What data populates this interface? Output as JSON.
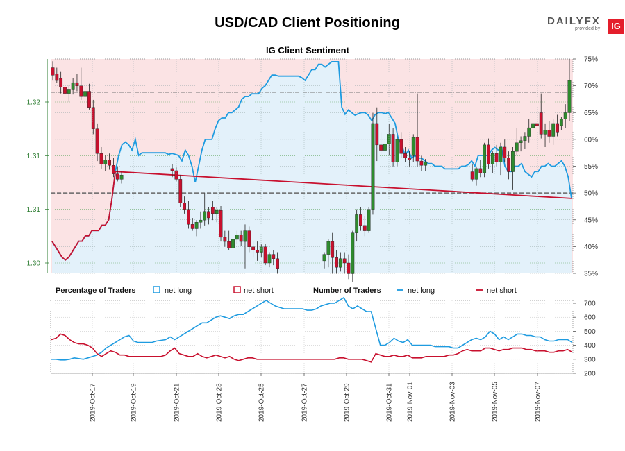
{
  "header": {
    "title": "USD/CAD Client Positioning",
    "brand": "DAILYFX",
    "brand_sub": "provided by",
    "brand_badge": "IG"
  },
  "colors": {
    "net_long": "#1e9be0",
    "net_short": "#c8102e",
    "long_area": "#e3f1fa",
    "short_area": "#fbe3e4",
    "candle_up": "#2e8b2e",
    "candle_down": "#c8102e",
    "price_axis": "#2e7d32"
  },
  "chart_data": [
    {
      "type": "line",
      "title": "IG Client Sentiment",
      "description_kind": "candlestick price with net long percentage area",
      "x_ticks": [
        "2019-Oct-17",
        "2019-Oct-19",
        "2019-Oct-21",
        "2019-Oct-23",
        "2019-Oct-25",
        "2019-Oct-27",
        "2019-Oct-29",
        "2019-Oct-31",
        "2019-Nov-01",
        "2019-Nov-03",
        "2019-Nov-05",
        "2019-Nov-07"
      ],
      "price_axis": {
        "ticks": [
          "1.30",
          "1.31",
          "1.31",
          "1.32"
        ],
        "values": [
          1.3,
          1.305,
          1.31,
          1.315
        ],
        "range": [
          1.299,
          1.3195
        ]
      },
      "percent_axis": {
        "ticks": [
          "35%",
          "40%",
          "45%",
          "50%",
          "55%",
          "60%",
          "65%",
          "70%",
          "75%"
        ],
        "range": [
          35,
          75
        ]
      },
      "reference_lines": {
        "net_long_50pct": 50,
        "price_last_high": 1.3159
      },
      "net_long_pct": [
        41,
        40,
        39,
        38,
        37.5,
        38,
        39,
        40,
        41,
        41,
        42,
        42,
        43,
        43,
        43,
        44,
        44,
        45,
        49,
        54,
        57,
        59,
        59.5,
        59,
        58,
        60,
        57,
        57.5,
        57.5,
        57.5,
        57.5,
        57.5,
        57.5,
        57.5,
        57.5,
        57.2,
        57.4,
        57.2,
        57,
        56,
        58,
        57,
        55,
        52,
        55,
        58,
        60,
        60,
        60,
        62,
        63.5,
        64,
        64,
        65,
        65,
        65.5,
        66,
        67.5,
        68,
        68,
        68.5,
        68.5,
        68.5,
        69.5,
        70,
        71,
        72,
        72,
        71.8,
        71.8,
        71.8,
        71.8,
        71.8,
        71.8,
        71.8,
        71.5,
        71,
        72,
        73,
        73,
        74,
        74,
        73.5,
        74,
        74.5,
        74.5,
        74.5,
        66,
        64.7,
        65.5,
        65,
        64.5,
        64.8,
        65,
        65,
        64.5,
        63.5,
        64.6,
        65,
        65,
        64.8,
        65,
        64,
        63,
        60,
        59,
        57,
        58,
        56.5,
        57,
        56.5,
        56.5,
        56,
        55.5,
        55.5,
        55,
        55,
        55,
        54.5,
        54.5,
        54.5,
        54.5,
        54.5,
        55,
        55,
        55.3,
        56,
        55,
        57,
        57,
        57,
        57,
        58,
        58.5,
        58,
        58.5,
        55,
        54,
        54,
        55,
        55,
        55.5,
        54,
        53.5,
        53,
        54,
        54,
        55,
        55,
        55.5,
        55,
        55,
        55.5,
        56,
        55,
        53,
        49
      ],
      "candles": [
        {
          "o": 1.3182,
          "h": 1.3188,
          "l": 1.317,
          "c": 1.3175
        },
        {
          "o": 1.3176,
          "h": 1.3182,
          "l": 1.3168,
          "c": 1.317
        },
        {
          "o": 1.3172,
          "h": 1.3178,
          "l": 1.3158,
          "c": 1.3164
        },
        {
          "o": 1.3164,
          "h": 1.317,
          "l": 1.3153,
          "c": 1.3158
        },
        {
          "o": 1.3158,
          "h": 1.3166,
          "l": 1.315,
          "c": 1.3162
        },
        {
          "o": 1.3162,
          "h": 1.3172,
          "l": 1.3157,
          "c": 1.3168
        },
        {
          "o": 1.3168,
          "h": 1.3176,
          "l": 1.316,
          "c": 1.3165
        },
        {
          "o": 1.3165,
          "h": 1.3182,
          "l": 1.3152,
          "c": 1.3155
        },
        {
          "o": 1.3155,
          "h": 1.3163,
          "l": 1.3148,
          "c": 1.316
        },
        {
          "o": 1.316,
          "h": 1.3167,
          "l": 1.3143,
          "c": 1.3145
        },
        {
          "o": 1.3145,
          "h": 1.3152,
          "l": 1.312,
          "c": 1.3125
        },
        {
          "o": 1.3125,
          "h": 1.313,
          "l": 1.3095,
          "c": 1.3102
        },
        {
          "o": 1.3102,
          "h": 1.3108,
          "l": 1.3088,
          "c": 1.3092
        },
        {
          "o": 1.3092,
          "h": 1.31,
          "l": 1.3086,
          "c": 1.3096
        },
        {
          "o": 1.3096,
          "h": 1.3102,
          "l": 1.3087,
          "c": 1.3091
        },
        {
          "o": 1.3091,
          "h": 1.3098,
          "l": 1.308,
          "c": 1.3083
        },
        {
          "o": 1.3083,
          "h": 1.309,
          "l": 1.3076,
          "c": 1.3078
        },
        {
          "o": 1.3078,
          "h": 1.3085,
          "l": 1.3074,
          "c": 1.3082
        },
        {
          "o": 1.3088,
          "h": 1.3092,
          "l": 1.308,
          "c": 1.3086
        },
        {
          "o": 1.3086,
          "h": 1.309,
          "l": 1.3076,
          "c": 1.3078
        },
        {
          "o": 1.3078,
          "h": 1.3082,
          "l": 1.3052,
          "c": 1.3056
        },
        {
          "o": 1.3056,
          "h": 1.3062,
          "l": 1.3046,
          "c": 1.305
        },
        {
          "o": 1.305,
          "h": 1.3058,
          "l": 1.3032,
          "c": 1.3036
        },
        {
          "o": 1.3036,
          "h": 1.3042,
          "l": 1.303,
          "c": 1.3032
        },
        {
          "o": 1.3032,
          "h": 1.304,
          "l": 1.3025,
          "c": 1.3038
        },
        {
          "o": 1.3038,
          "h": 1.3048,
          "l": 1.3032,
          "c": 1.304
        },
        {
          "o": 1.304,
          "h": 1.3065,
          "l": 1.3035,
          "c": 1.3048
        },
        {
          "o": 1.3048,
          "h": 1.3052,
          "l": 1.3036,
          "c": 1.3042
        },
        {
          "o": 1.3052,
          "h": 1.3058,
          "l": 1.304,
          "c": 1.3046
        },
        {
          "o": 1.3046,
          "h": 1.3052,
          "l": 1.3038,
          "c": 1.3049
        },
        {
          "o": 1.3049,
          "h": 1.3053,
          "l": 1.302,
          "c": 1.3024
        },
        {
          "o": 1.3024,
          "h": 1.303,
          "l": 1.3015,
          "c": 1.302
        },
        {
          "o": 1.302,
          "h": 1.303,
          "l": 1.3012,
          "c": 1.3014
        },
        {
          "o": 1.3014,
          "h": 1.3026,
          "l": 1.3006,
          "c": 1.3022
        },
        {
          "o": 1.3022,
          "h": 1.303,
          "l": 1.3018,
          "c": 1.3026
        },
        {
          "o": 1.3026,
          "h": 1.303,
          "l": 1.3016,
          "c": 1.302
        },
        {
          "o": 1.302,
          "h": 1.3036,
          "l": 1.2995,
          "c": 1.303
        },
        {
          "o": 1.303,
          "h": 1.3034,
          "l": 1.301,
          "c": 1.3015
        },
        {
          "o": 1.3015,
          "h": 1.302,
          "l": 1.3005,
          "c": 1.3012
        },
        {
          "o": 1.3012,
          "h": 1.302,
          "l": 1.3002,
          "c": 1.301
        },
        {
          "o": 1.301,
          "h": 1.3018,
          "l": 1.3005,
          "c": 1.3015
        },
        {
          "o": 1.3015,
          "h": 1.3018,
          "l": 1.2998,
          "c": 1.3
        },
        {
          "o": 1.3,
          "h": 1.301,
          "l": 1.2996,
          "c": 1.3008
        },
        {
          "o": 1.3008,
          "h": 1.3012,
          "l": 1.2998,
          "c": 1.3004
        },
        {
          "o": 1.3004,
          "h": 1.301,
          "l": 1.299,
          "c": 1.2995
        },
        {
          "o": 1.3002,
          "h": 1.301,
          "l": 1.2995,
          "c": 1.3008
        },
        {
          "o": 1.3008,
          "h": 1.3022,
          "l": 1.2996,
          "c": 1.302
        },
        {
          "o": 1.302,
          "h": 1.3028,
          "l": 1.299,
          "c": 1.3005
        },
        {
          "o": 1.3005,
          "h": 1.3012,
          "l": 1.299,
          "c": 1.2996
        },
        {
          "o": 1.2996,
          "h": 1.301,
          "l": 1.2992,
          "c": 1.3004
        },
        {
          "o": 1.3004,
          "h": 1.301,
          "l": 1.299,
          "c": 1.3
        },
        {
          "o": 1.3,
          "h": 1.3008,
          "l": 1.2985,
          "c": 1.299
        },
        {
          "o": 1.299,
          "h": 1.303,
          "l": 1.2982,
          "c": 1.3028
        },
        {
          "o": 1.3028,
          "h": 1.305,
          "l": 1.302,
          "c": 1.3045
        },
        {
          "o": 1.3045,
          "h": 1.3052,
          "l": 1.303,
          "c": 1.3035
        },
        {
          "o": 1.3035,
          "h": 1.3044,
          "l": 1.3025,
          "c": 1.303
        },
        {
          "o": 1.303,
          "h": 1.3052,
          "l": 1.3028,
          "c": 1.305
        },
        {
          "o": 1.305,
          "h": 1.314,
          "l": 1.3045,
          "c": 1.313
        },
        {
          "o": 1.313,
          "h": 1.3145,
          "l": 1.3095,
          "c": 1.311
        },
        {
          "o": 1.311,
          "h": 1.3122,
          "l": 1.3098,
          "c": 1.3105
        },
        {
          "o": 1.3105,
          "h": 1.3115,
          "l": 1.3095,
          "c": 1.3111
        },
        {
          "o": 1.3111,
          "h": 1.313,
          "l": 1.31,
          "c": 1.312
        },
        {
          "o": 1.312,
          "h": 1.3126,
          "l": 1.309,
          "c": 1.3094
        },
        {
          "o": 1.3094,
          "h": 1.3118,
          "l": 1.309,
          "c": 1.3115
        },
        {
          "o": 1.3115,
          "h": 1.3122,
          "l": 1.3098,
          "c": 1.3102
        },
        {
          "o": 1.3102,
          "h": 1.3108,
          "l": 1.3094,
          "c": 1.3098
        },
        {
          "o": 1.3098,
          "h": 1.3104,
          "l": 1.309,
          "c": 1.3096
        },
        {
          "o": 1.31,
          "h": 1.312,
          "l": 1.3094,
          "c": 1.3117
        },
        {
          "o": 1.3117,
          "h": 1.3158,
          "l": 1.309,
          "c": 1.3095
        },
        {
          "o": 1.3095,
          "h": 1.31,
          "l": 1.3086,
          "c": 1.3091
        },
        {
          "o": 1.3091,
          "h": 1.3097,
          "l": 1.3086,
          "c": 1.3094
        },
        {
          "o": 1.3085,
          "h": 1.3092,
          "l": 1.3076,
          "c": 1.3078
        },
        {
          "o": 1.3078,
          "h": 1.309,
          "l": 1.3072,
          "c": 1.3088
        },
        {
          "o": 1.3088,
          "h": 1.3096,
          "l": 1.308,
          "c": 1.3084
        },
        {
          "o": 1.3084,
          "h": 1.3112,
          "l": 1.308,
          "c": 1.311
        },
        {
          "o": 1.311,
          "h": 1.3116,
          "l": 1.3088,
          "c": 1.3092
        },
        {
          "o": 1.3092,
          "h": 1.3104,
          "l": 1.3084,
          "c": 1.3102
        },
        {
          "o": 1.3102,
          "h": 1.311,
          "l": 1.309,
          "c": 1.3094
        },
        {
          "o": 1.3094,
          "h": 1.3112,
          "l": 1.3082,
          "c": 1.3108
        },
        {
          "o": 1.3108,
          "h": 1.3115,
          "l": 1.3094,
          "c": 1.3098
        },
        {
          "o": 1.3098,
          "h": 1.3104,
          "l": 1.3078,
          "c": 1.3085
        },
        {
          "o": 1.3085,
          "h": 1.3108,
          "l": 1.3068,
          "c": 1.3104
        },
        {
          "o": 1.3104,
          "h": 1.3126,
          "l": 1.31,
          "c": 1.3112
        },
        {
          "o": 1.3112,
          "h": 1.3118,
          "l": 1.3104,
          "c": 1.3114
        },
        {
          "o": 1.3114,
          "h": 1.3122,
          "l": 1.3106,
          "c": 1.3118
        },
        {
          "o": 1.3118,
          "h": 1.3134,
          "l": 1.3112,
          "c": 1.3126
        },
        {
          "o": 1.3126,
          "h": 1.3134,
          "l": 1.3118,
          "c": 1.313
        },
        {
          "o": 1.313,
          "h": 1.3146,
          "l": 1.3122,
          "c": 1.3128
        },
        {
          "o": 1.314,
          "h": 1.3158,
          "l": 1.3116,
          "c": 1.312
        },
        {
          "o": 1.312,
          "h": 1.313,
          "l": 1.3108,
          "c": 1.3124
        },
        {
          "o": 1.3124,
          "h": 1.3132,
          "l": 1.3112,
          "c": 1.3118
        },
        {
          "o": 1.3118,
          "h": 1.3134,
          "l": 1.311,
          "c": 1.313
        },
        {
          "o": 1.313,
          "h": 1.3138,
          "l": 1.3118,
          "c": 1.3122
        },
        {
          "o": 1.3128,
          "h": 1.3136,
          "l": 1.3124,
          "c": 1.3134
        },
        {
          "o": 1.3134,
          "h": 1.3148,
          "l": 1.3126,
          "c": 1.314
        },
        {
          "o": 1.314,
          "h": 1.319,
          "l": 1.3132,
          "c": 1.317
        }
      ]
    },
    {
      "type": "line",
      "legend": [
        {
          "group": "Percentage of Traders",
          "items": [
            "net long",
            "net short"
          ]
        },
        {
          "group": "Number of Traders",
          "items": [
            "net long",
            "net short"
          ]
        }
      ],
      "y_ticks": [
        "200",
        "300",
        "400",
        "500",
        "600",
        "700"
      ],
      "ylim": [
        200,
        700
      ],
      "series": [
        {
          "name": "net long",
          "values": [
            300,
            300,
            295,
            295,
            300,
            310,
            305,
            300,
            310,
            320,
            330,
            350,
            380,
            400,
            420,
            440,
            460,
            470,
            430,
            420,
            420,
            420,
            420,
            430,
            435,
            440,
            460,
            440,
            460,
            480,
            500,
            520,
            540,
            560,
            560,
            580,
            600,
            610,
            600,
            590,
            610,
            620,
            620,
            640,
            660,
            680,
            700,
            720,
            700,
            680,
            670,
            660,
            660,
            660,
            660,
            660,
            650,
            650,
            660,
            680,
            690,
            700,
            700,
            720,
            740,
            680,
            660,
            680,
            660,
            640,
            640,
            520,
            400,
            400,
            420,
            450,
            430,
            420,
            440,
            400,
            400,
            400,
            400,
            400,
            390,
            390,
            390,
            390,
            380,
            380,
            400,
            420,
            440,
            450,
            440,
            460,
            500,
            480,
            440,
            460,
            440,
            460,
            480,
            480,
            470,
            470,
            460,
            460,
            440,
            430,
            430,
            440,
            440,
            440,
            420
          ]
        },
        {
          "name": "net short",
          "values": [
            440,
            450,
            480,
            470,
            440,
            420,
            410,
            410,
            400,
            380,
            340,
            320,
            340,
            360,
            350,
            330,
            330,
            320,
            320,
            320,
            320,
            320,
            320,
            320,
            320,
            330,
            360,
            380,
            340,
            330,
            320,
            320,
            340,
            320,
            310,
            320,
            330,
            320,
            310,
            320,
            300,
            290,
            300,
            310,
            310,
            300,
            300,
            300,
            300,
            300,
            300,
            300,
            300,
            300,
            300,
            300,
            300,
            300,
            300,
            300,
            300,
            300,
            300,
            310,
            310,
            300,
            300,
            300,
            300,
            290,
            280,
            340,
            330,
            320,
            320,
            330,
            320,
            320,
            330,
            310,
            310,
            310,
            320,
            320,
            320,
            320,
            320,
            330,
            330,
            340,
            360,
            370,
            360,
            360,
            360,
            380,
            380,
            370,
            360,
            370,
            370,
            380,
            380,
            380,
            370,
            370,
            360,
            360,
            360,
            350,
            350,
            360,
            360,
            370,
            350
          ]
        }
      ]
    }
  ]
}
